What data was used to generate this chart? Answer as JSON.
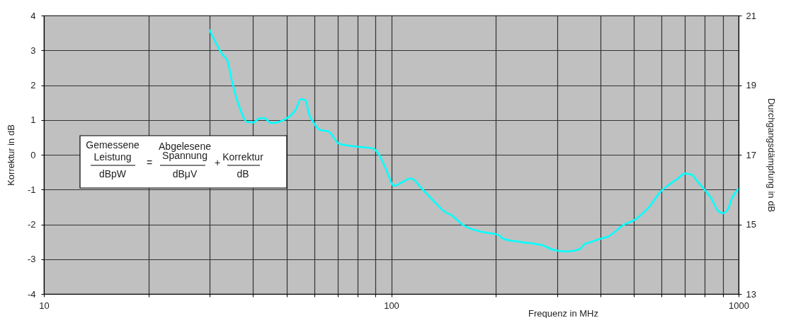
{
  "chart_data": {
    "type": "line",
    "xlabel": "Frequenz in MHz",
    "ylabel": "Korrektur in dB",
    "y2label": "Durchgangsdämpfung in dB",
    "x": [
      30,
      32.8,
      33.7,
      34.9,
      36.9,
      38.3,
      40,
      41.9,
      43.1,
      45.1,
      50.4,
      53.1,
      54.9,
      56.7,
      58,
      59.7,
      62.5,
      66,
      70.7,
      78.7,
      88.8,
      91.7,
      96.4,
      101.8,
      114,
      122.4,
      133.7,
      142.6,
      149.2,
      160.4,
      181,
      204,
      210,
      237,
      272,
      295,
      321,
      349,
      361,
      373,
      397,
      421,
      468,
      500,
      548,
      600,
      637,
      667,
      700,
      733,
      760,
      802,
      832,
      871,
      900,
      934,
      955,
      1000
    ],
    "series": [
      {
        "color": "#00ffff",
        "values": [
          3.58,
          2.86,
          2.72,
          2.05,
          1.26,
          0.95,
          0.93,
          1.05,
          1.05,
          0.91,
          1.07,
          1.3,
          1.6,
          1.56,
          1.16,
          0.93,
          0.71,
          0.67,
          0.32,
          0.24,
          0.18,
          0.04,
          -0.39,
          -0.89,
          -0.68,
          -0.97,
          -1.37,
          -1.64,
          -1.74,
          -2.01,
          -2.21,
          -2.31,
          -2.41,
          -2.51,
          -2.6,
          -2.74,
          -2.78,
          -2.71,
          -2.56,
          -2.52,
          -2.42,
          -2.35,
          -2.01,
          -1.88,
          -1.54,
          -1.03,
          -0.83,
          -0.69,
          -0.54,
          -0.57,
          -0.76,
          -1.03,
          -1.24,
          -1.6,
          -1.68,
          -1.54,
          -1.27,
          -0.98
        ]
      }
    ],
    "xlim": [
      10,
      1000
    ],
    "xticks": [
      10,
      {
        "value": 20,
        "label": null
      },
      {
        "value": 30,
        "label": null
      },
      {
        "value": 40,
        "label": null
      },
      {
        "value": 50,
        "label": null
      },
      {
        "value": 60,
        "label": null
      },
      {
        "value": 70,
        "label": null
      },
      {
        "value": 80,
        "label": null
      },
      {
        "value": 90,
        "label": null
      },
      100,
      {
        "value": 200,
        "label": null
      },
      {
        "value": 300,
        "label": null
      },
      {
        "value": 400,
        "label": null
      },
      {
        "value": 500,
        "label": null
      },
      {
        "value": 600,
        "label": null
      },
      {
        "value": 700,
        "label": null
      },
      {
        "value": 800,
        "label": null
      },
      {
        "value": 900,
        "label": null
      },
      1000
    ],
    "ylim": [
      -4,
      4
    ],
    "yticks": [
      -4,
      -3,
      -2,
      -1,
      0,
      1,
      2,
      3,
      4
    ],
    "y2lim": [
      13,
      21
    ],
    "y2ticks": [
      13,
      15,
      17,
      19,
      21
    ],
    "log": "x",
    "grid": true,
    "line_style": "solid",
    "annotations": [
      "Gemessene",
      "Leistung",
      "dBpW",
      "=",
      "Abgelesene",
      "Spannung",
      "dBμV",
      "+",
      "Korrektur",
      "dB"
    ]
  }
}
